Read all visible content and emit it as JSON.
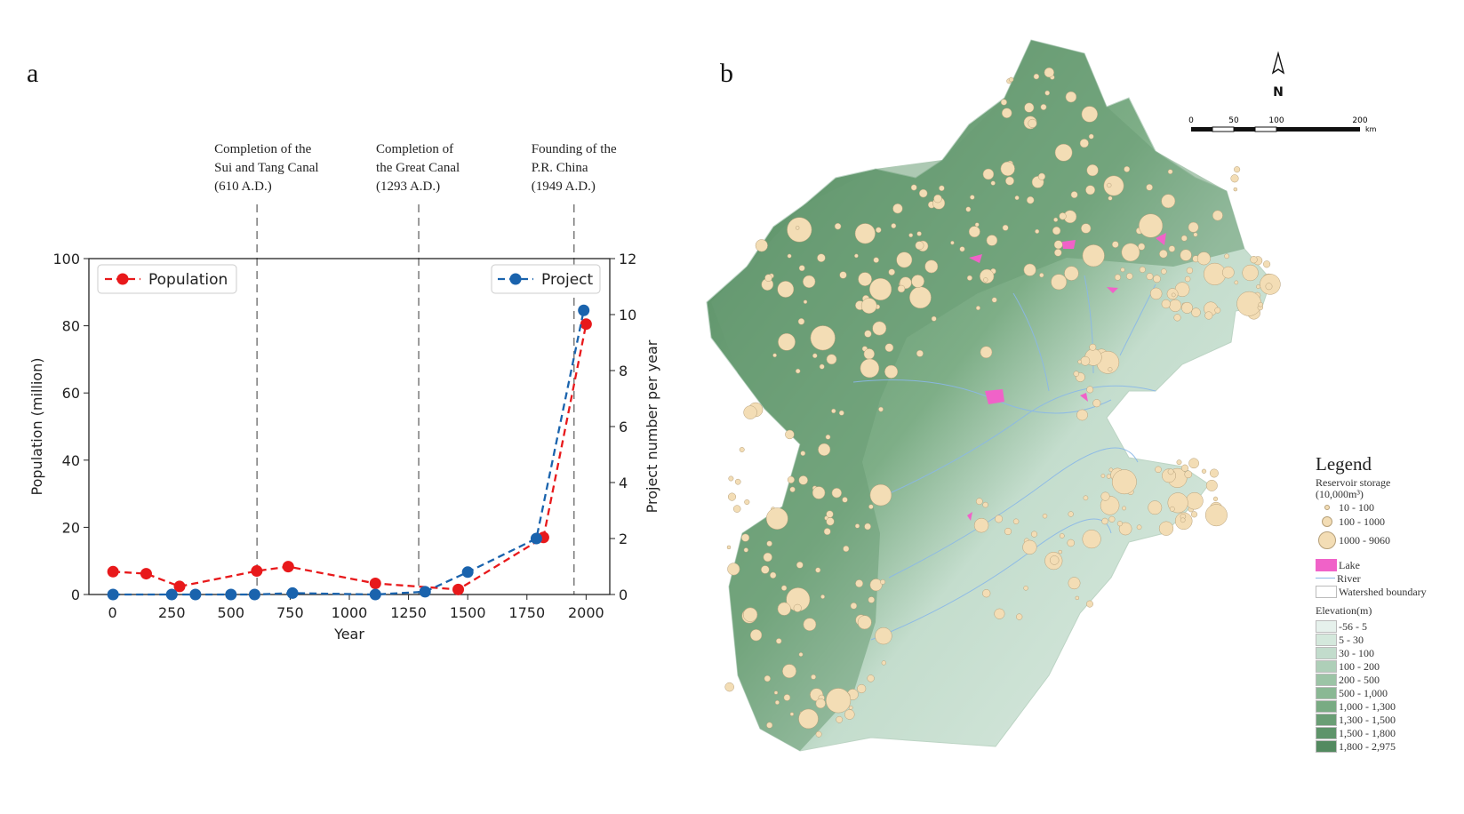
{
  "panel_a_label": "a",
  "panel_b_label": "b",
  "chart_data": {
    "type": "line",
    "title": "",
    "xlabel": "Year",
    "ylabel": "Population (million)",
    "ylabel_right": "Project number per year",
    "xlim": [
      -100,
      2100
    ],
    "ylim": [
      0,
      100
    ],
    "ylim_right": [
      0,
      12
    ],
    "x_ticks": [
      0,
      250,
      500,
      750,
      1000,
      1250,
      1500,
      1750,
      2000
    ],
    "y_ticks": [
      0,
      20,
      40,
      60,
      80,
      100
    ],
    "y_ticks_right": [
      0,
      2,
      4,
      6,
      8,
      10,
      12
    ],
    "series": [
      {
        "name": "Population",
        "axis": "left",
        "color": "#e8191b",
        "x": [
          2,
          142,
          283,
          609,
          742,
          1110,
          1460,
          1820,
          2000
        ],
        "y": [
          6.8,
          6.2,
          2.4,
          7.0,
          8.3,
          3.3,
          1.5,
          17.0,
          80.5
        ]
      },
      {
        "name": "Project",
        "axis": "right",
        "color": "#1a63ad",
        "x": [
          2,
          250,
          350,
          500,
          600,
          760,
          1110,
          1320,
          1500,
          1790,
          1990
        ],
        "y": [
          0,
          0,
          0,
          0,
          0,
          0.05,
          0,
          0.1,
          0.8,
          2.0,
          10.15
        ]
      }
    ],
    "events": [
      {
        "year": 610,
        "label": [
          "Completion of the",
          "Sui and Tang Canal",
          "(610 A.D.)"
        ]
      },
      {
        "year": 1293,
        "label": [
          "Completion of",
          "the Great Canal",
          "(1293 A.D.)"
        ]
      },
      {
        "year": 1949,
        "label": [
          "Founding of the",
          "P.R. China",
          "(1949 A.D.)"
        ]
      }
    ],
    "legend": [
      {
        "name": "Population",
        "placement": "top-left"
      },
      {
        "name": "Project",
        "placement": "top-right"
      }
    ]
  },
  "map": {
    "north_label": "N",
    "scale_ticks": [
      "0",
      "50",
      "100",
      "200"
    ],
    "scale_unit": "km",
    "legend": {
      "title": "Legend",
      "storage_title": "Reservoir storage",
      "storage_unit": "(10,000m³)",
      "storage_classes": [
        "10 - 100",
        "100 - 1000",
        "1000 - 9060"
      ],
      "features": [
        {
          "label": "Lake",
          "color": "#f062c8"
        },
        {
          "label": "River",
          "color": "#8ab8e8"
        },
        {
          "label": "Watershed boundary",
          "color": "#ffffff"
        }
      ],
      "elevation_title": "Elevation(m)",
      "elevation_classes": [
        {
          "label": "-56 - 5",
          "color": "#e6f1ec"
        },
        {
          "label": "5 - 30",
          "color": "#d4e8dc"
        },
        {
          "label": "30 - 100",
          "color": "#c2dccc"
        },
        {
          "label": "100 - 200",
          "color": "#aecfb8"
        },
        {
          "label": "200 - 500",
          "color": "#9cc4a6"
        },
        {
          "label": "500 - 1,000",
          "color": "#8ab894"
        },
        {
          "label": "1,000 - 1,300",
          "color": "#79ab83"
        },
        {
          "label": "1,300 - 1,500",
          "color": "#6a9e75"
        },
        {
          "label": "1,500 - 1,800",
          "color": "#5e946a"
        },
        {
          "label": "1,800 - 2,975",
          "color": "#538a60"
        }
      ]
    }
  }
}
